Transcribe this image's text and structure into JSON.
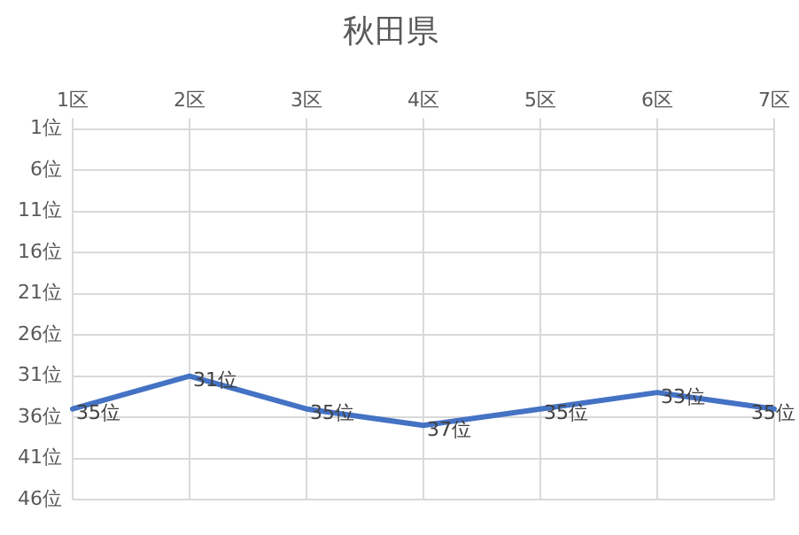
{
  "chart_data": {
    "type": "line",
    "title": "秋田県",
    "categories": [
      "1区",
      "2区",
      "3区",
      "4区",
      "5区",
      "6区",
      "7区"
    ],
    "series": [
      {
        "color": "#4472c4",
        "values": [
          35,
          31,
          35,
          37,
          35,
          33,
          35
        ],
        "value_labels": [
          "35位",
          "31位",
          "35位",
          "37位",
          "35位",
          "33位",
          "35位"
        ]
      }
    ],
    "ylim": [
      46,
      1
    ],
    "yticks": [
      {
        "value": 1,
        "label": "1位"
      },
      {
        "value": 6,
        "label": "6位"
      },
      {
        "value": 11,
        "label": "11位"
      },
      {
        "value": 16,
        "label": "16位"
      },
      {
        "value": 21,
        "label": "21位"
      },
      {
        "value": 26,
        "label": "26位"
      },
      {
        "value": 31,
        "label": "31位"
      },
      {
        "value": 36,
        "label": "36位"
      },
      {
        "value": 41,
        "label": "41位"
      },
      {
        "value": 46,
        "label": "46位"
      }
    ],
    "grid": true,
    "marker": "none",
    "line_style": "solid"
  }
}
